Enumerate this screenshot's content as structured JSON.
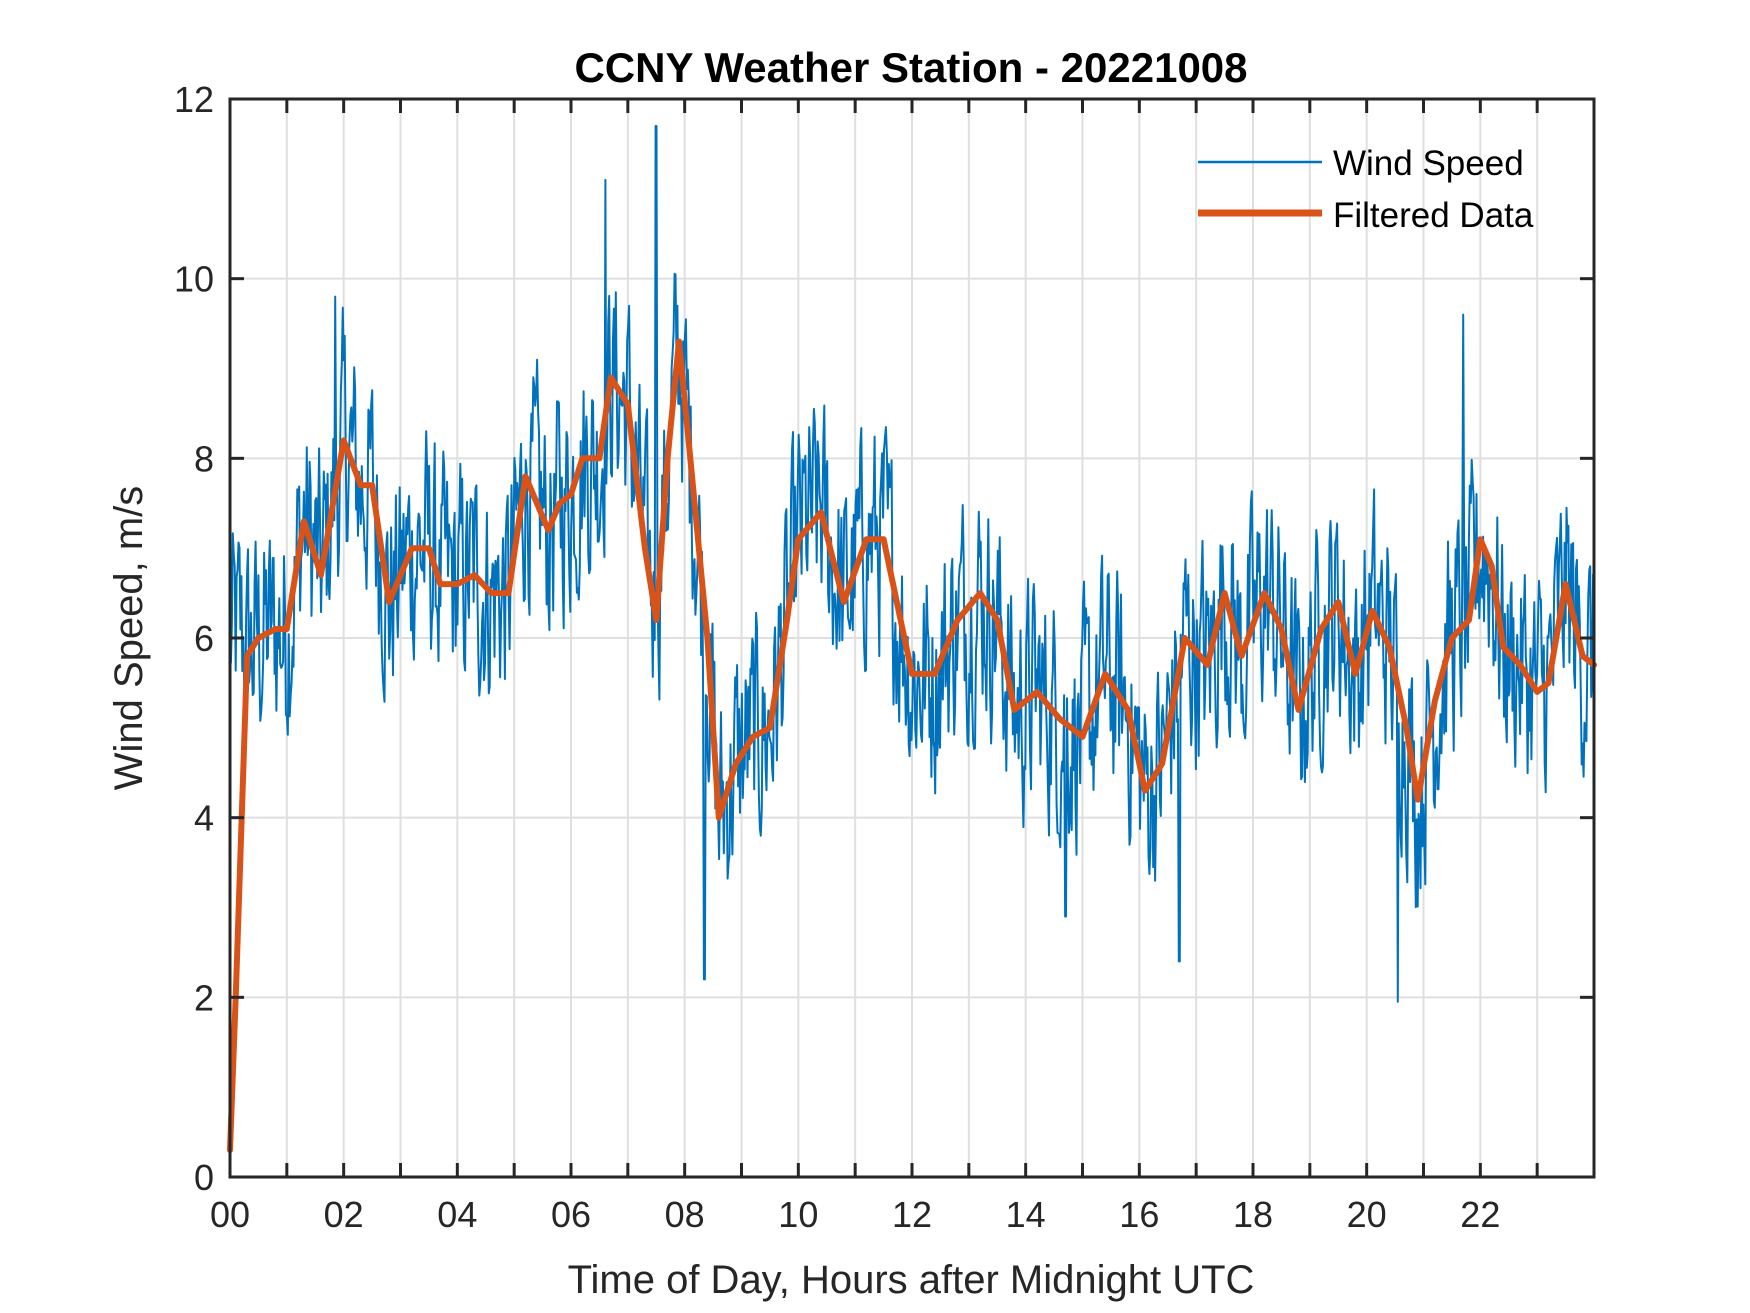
{
  "chart_data": {
    "type": "line",
    "title": "CCNY Weather Station - 20221008",
    "xlabel": "Time of Day, Hours after Midnight UTC",
    "ylabel": "Wind Speed, m/s",
    "xlim": [
      0,
      24
    ],
    "ylim": [
      0,
      12
    ],
    "x_ticks": [
      0,
      2,
      4,
      6,
      8,
      10,
      12,
      14,
      16,
      18,
      20,
      22
    ],
    "x_tick_labels": [
      "00",
      "02",
      "04",
      "06",
      "08",
      "10",
      "12",
      "14",
      "16",
      "18",
      "20",
      "22"
    ],
    "x_minor_ticks_every": 1,
    "y_ticks": [
      0,
      2,
      4,
      6,
      8,
      10,
      12
    ],
    "y_tick_labels": [
      "0",
      "2",
      "4",
      "6",
      "8",
      "10",
      "12"
    ],
    "grid": true,
    "legend_position": "top-right",
    "colors": {
      "wind_speed": "#0072BD",
      "filtered": "#D95319",
      "axis": "#262626",
      "grid": "#DFDFDF"
    },
    "series": [
      {
        "name": "Wind Speed",
        "style": "thin",
        "description": "raw 1-minute samples, noisy around filtered curve",
        "noise_amplitude": 1.6,
        "notable_points": [
          {
            "x": 6.6,
            "y": 11.1
          },
          {
            "x": 7.5,
            "y": 11.7
          },
          {
            "x": 8.35,
            "y": 2.2
          },
          {
            "x": 20.55,
            "y": 1.95
          },
          {
            "x": 21.7,
            "y": 9.6
          },
          {
            "x": 1.85,
            "y": 9.8
          },
          {
            "x": 16.7,
            "y": 2.4
          },
          {
            "x": 14.7,
            "y": 2.9
          }
        ]
      },
      {
        "name": "Filtered Data",
        "style": "thick",
        "x": [
          0.0,
          0.1,
          0.3,
          0.5,
          0.8,
          1.0,
          1.3,
          1.6,
          2.0,
          2.3,
          2.5,
          2.8,
          3.2,
          3.5,
          3.7,
          4.0,
          4.3,
          4.6,
          4.9,
          5.2,
          5.6,
          5.8,
          6.0,
          6.2,
          6.5,
          6.7,
          7.0,
          7.3,
          7.5,
          7.7,
          7.9,
          8.1,
          8.4,
          8.6,
          8.9,
          9.2,
          9.5,
          9.8,
          10.0,
          10.4,
          10.6,
          10.8,
          11.2,
          11.5,
          11.8,
          12.0,
          12.4,
          12.8,
          13.2,
          13.5,
          13.8,
          14.2,
          14.6,
          15.0,
          15.4,
          15.8,
          16.1,
          16.4,
          16.8,
          17.2,
          17.5,
          17.8,
          18.2,
          18.5,
          18.8,
          19.2,
          19.5,
          19.8,
          20.1,
          20.4,
          20.7,
          20.9,
          21.2,
          21.5,
          21.8,
          22.0,
          22.2,
          22.4,
          22.7,
          23.0,
          23.2,
          23.5,
          23.8,
          24.0
        ],
        "y": [
          0.3,
          2.0,
          5.8,
          6.0,
          6.1,
          6.1,
          7.3,
          6.7,
          8.2,
          7.7,
          7.7,
          6.4,
          7.0,
          7.0,
          6.6,
          6.6,
          6.7,
          6.5,
          6.5,
          7.8,
          7.2,
          7.5,
          7.6,
          8.0,
          8.0,
          8.9,
          8.6,
          7.0,
          6.2,
          8.0,
          9.3,
          8.0,
          6.0,
          4.0,
          4.6,
          4.9,
          5.0,
          6.2,
          7.1,
          7.4,
          6.9,
          6.4,
          7.1,
          7.1,
          6.2,
          5.6,
          5.6,
          6.2,
          6.5,
          6.2,
          5.2,
          5.4,
          5.1,
          4.9,
          5.6,
          5.2,
          4.3,
          4.6,
          6.0,
          5.7,
          6.5,
          5.8,
          6.5,
          6.1,
          5.2,
          6.1,
          6.4,
          5.6,
          6.3,
          5.9,
          5.0,
          4.2,
          5.3,
          6.0,
          6.2,
          7.1,
          6.8,
          5.9,
          5.7,
          5.4,
          5.5,
          6.6,
          5.8,
          5.7
        ]
      }
    ]
  }
}
